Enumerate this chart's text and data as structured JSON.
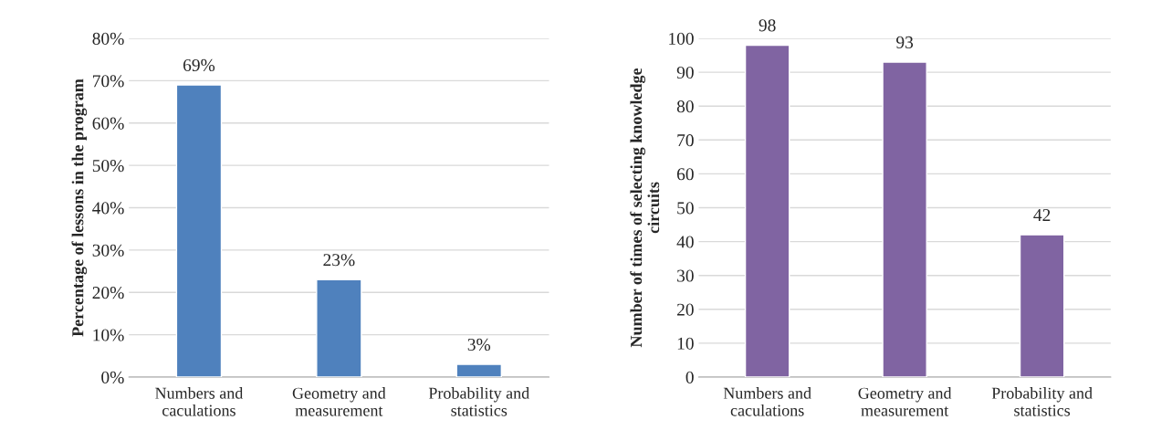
{
  "chart_data": [
    {
      "type": "bar",
      "categories": [
        "Numbers and\ncaculations",
        "Geometry and\nmeasurement",
        "Probability and\nstatistics"
      ],
      "ylabel": "Percentage of lessons in the program",
      "values": [
        69,
        23,
        3
      ],
      "color": "#4f81bd",
      "value_labels": [
        "69%",
        "23%",
        "3%"
      ],
      "ylim": [
        0,
        80
      ],
      "yticks": [
        {
          "value": 0,
          "label": "0%"
        },
        {
          "value": 10,
          "label": "10%"
        },
        {
          "value": 20,
          "label": "20%"
        },
        {
          "value": 30,
          "label": "30%"
        },
        {
          "value": 40,
          "label": "40%"
        },
        {
          "value": 50,
          "label": "50%"
        },
        {
          "value": 60,
          "label": "60%"
        },
        {
          "value": 70,
          "label": "70%"
        },
        {
          "value": 80,
          "label": "80%"
        }
      ],
      "grid": "y",
      "legend": false
    },
    {
      "type": "bar",
      "categories": [
        "Numbers and\ncaculations",
        "Geometry and\nmeasurement",
        "Probability and\nstatistics"
      ],
      "ylabel": "Number of times of selecting knowledge\ncircuits",
      "values": [
        98,
        93,
        42
      ],
      "color": "#8064a2",
      "data_labels": true,
      "ylim": [
        0,
        100
      ],
      "yticks": [
        0,
        10,
        20,
        30,
        40,
        50,
        60,
        70,
        80,
        90,
        100
      ],
      "grid": "y",
      "legend": false
    }
  ]
}
